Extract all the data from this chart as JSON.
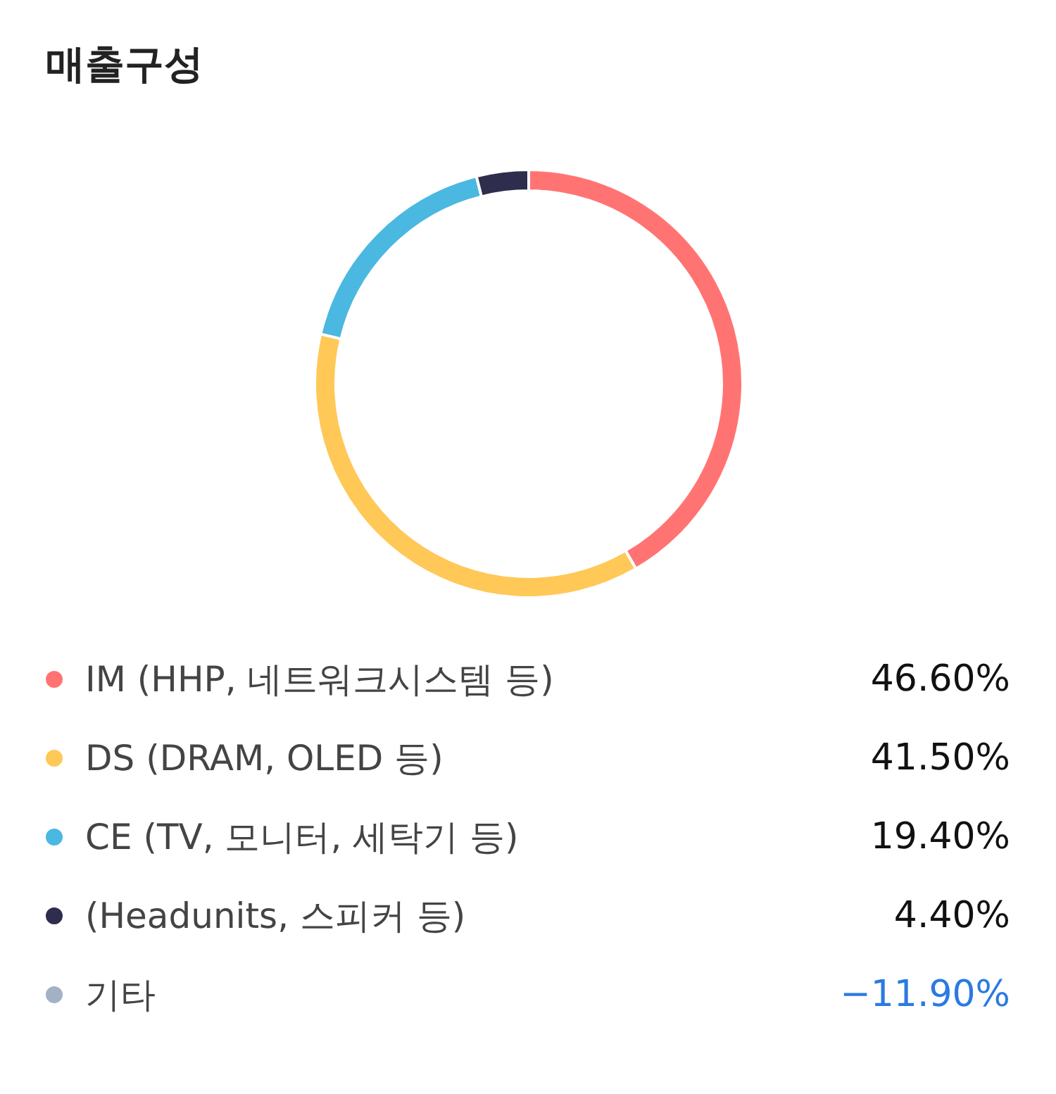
{
  "chart_data": {
    "type": "donut",
    "title": "매출구성",
    "categories": [
      "IM (HHP, 네트워크시스템 등)",
      "DS (DRAM, OLED 등)",
      "CE (TV, 모니터, 세탁기 등)",
      "(Headunits, 스피커 등)",
      "기타"
    ],
    "values": [
      46.6,
      41.5,
      19.4,
      4.4,
      null
    ],
    "value_labels": [
      "46.60%",
      "41.50%",
      "19.40%",
      "4.40%",
      "−11.90%"
    ],
    "colors": [
      "#ff7473",
      "#ffc857",
      "#4ab8e0",
      "#2e2d4d",
      "#a3b1c6"
    ],
    "legend": "bottom"
  }
}
